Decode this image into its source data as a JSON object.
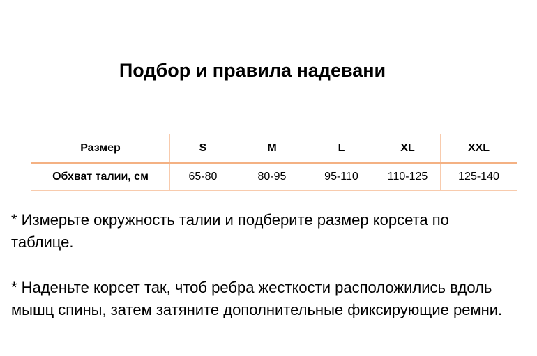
{
  "title": "Подбор и правила надевани",
  "table": {
    "header": [
      "Размер",
      "S",
      "M",
      "L",
      "XL",
      "XXL"
    ],
    "row": [
      "Обхват талии, см",
      "65-80",
      "80-95",
      "95-110",
      "110-125",
      "125-140"
    ]
  },
  "paragraphs": [
    "* Измерьте окружность талии и подберите размер корсета по таблице.",
    "* Наденьте корсет так, чтоб ребра жесткости расположились вдоль мышц спины, затем затяните дополнительные фиксирующие ремни."
  ],
  "colors": {
    "table_border": "#f8cbad"
  }
}
